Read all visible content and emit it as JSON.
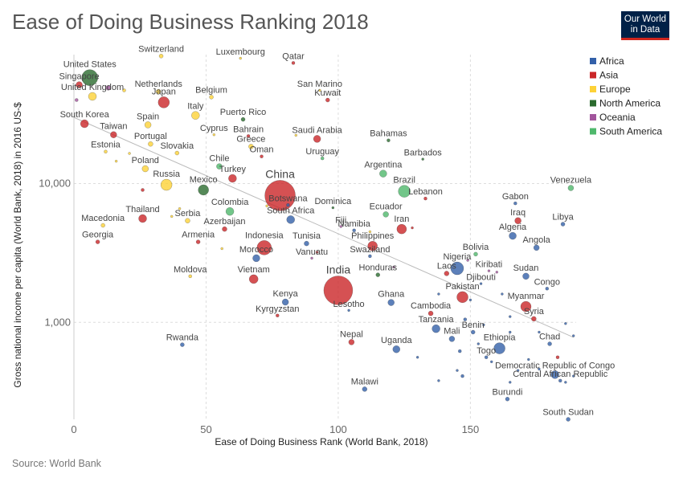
{
  "title": "Ease of Doing Business Ranking 2018",
  "logo": {
    "line1": "Our World",
    "line2": "in Data"
  },
  "source": "Source: World Bank",
  "chart_data": {
    "type": "scatter",
    "xlabel": "Ease of Doing Business Rank (World Bank, 2018)",
    "ylabel": "Gross national income per capita (World Bank, 2018) in 2016 US-$",
    "xlim": [
      0,
      190
    ],
    "ylim": [
      200,
      85000
    ],
    "yscale": "log",
    "x_ticks": [
      0,
      50,
      100,
      150
    ],
    "y_ticks": [
      {
        "value": 1000,
        "label": "1,000"
      },
      {
        "value": 10000,
        "label": "10,000"
      }
    ],
    "grid": true,
    "legend_position": "top-right",
    "trendline": {
      "x": [
        0,
        189
      ],
      "y": [
        30000,
        780
      ]
    },
    "regions": [
      {
        "name": "Africa",
        "color": "#3360a9"
      },
      {
        "name": "Asia",
        "color": "#ca2628"
      },
      {
        "name": "Europe",
        "color": "#fdd237"
      },
      {
        "name": "North America",
        "color": "#2b6b2e"
      },
      {
        "name": "Oceania",
        "color": "#a2559c"
      },
      {
        "name": "South America",
        "color": "#4fb86c"
      }
    ],
    "points": [
      {
        "label": "United States",
        "x": 6,
        "y": 58000,
        "r": 10,
        "region": "North America"
      },
      {
        "label": "Singapore",
        "x": 2,
        "y": 51500,
        "r": 4,
        "region": "Asia"
      },
      {
        "label": "United Kingdom",
        "x": 7,
        "y": 42500,
        "r": 5,
        "region": "Europe"
      },
      {
        "label": "Switzerland",
        "x": 33,
        "y": 83000,
        "r": 2.5,
        "region": "Europe"
      },
      {
        "label": "Luxembourg",
        "x": 63,
        "y": 80000,
        "r": 1.5,
        "region": "Europe"
      },
      {
        "label": "Qatar",
        "x": 83,
        "y": 74000,
        "r": 2,
        "region": "Asia"
      },
      {
        "label": "Netherlands",
        "x": 32,
        "y": 46000,
        "r": 3,
        "region": "Europe"
      },
      {
        "label": "Japan",
        "x": 34,
        "y": 38500,
        "r": 7,
        "region": "Asia"
      },
      {
        "label": "Belgium",
        "x": 52,
        "y": 42000,
        "r": 2.5,
        "region": "Europe"
      },
      {
        "label": "San Marino",
        "x": 93,
        "y": 47000,
        "r": 1.5,
        "region": "Europe"
      },
      {
        "label": "Kuwait",
        "x": 96,
        "y": 40000,
        "r": 2.5,
        "region": "Asia"
      },
      {
        "label": "Italy",
        "x": 46,
        "y": 31000,
        "r": 5,
        "region": "Europe"
      },
      {
        "label": "Puerto Rico",
        "x": 64,
        "y": 29000,
        "r": 2.5,
        "region": "North America"
      },
      {
        "label": "South Korea",
        "x": 4,
        "y": 27000,
        "r": 5,
        "region": "Asia"
      },
      {
        "label": "Spain",
        "x": 28,
        "y": 26500,
        "r": 4,
        "region": "Europe"
      },
      {
        "label": "Taiwan",
        "x": 15,
        "y": 22500,
        "r": 4,
        "region": "Asia"
      },
      {
        "label": "Cyprus",
        "x": 53,
        "y": 22500,
        "r": 1.5,
        "region": "Europe"
      },
      {
        "label": "Bahrain",
        "x": 66,
        "y": 22000,
        "r": 2,
        "region": "Asia"
      },
      {
        "label": "Saudi Arabia",
        "x": 92,
        "y": 21000,
        "r": 4.5,
        "region": "Asia"
      },
      {
        "label": "Bahamas",
        "x": 119,
        "y": 20500,
        "r": 2,
        "region": "North America"
      },
      {
        "label": "Portugal",
        "x": 29,
        "y": 19300,
        "r": 3,
        "region": "Europe"
      },
      {
        "label": "Greece",
        "x": 67,
        "y": 18500,
        "r": 3,
        "region": "Europe"
      },
      {
        "label": "Estonia",
        "x": 12,
        "y": 17000,
        "r": 2,
        "region": "Europe"
      },
      {
        "label": "Slovakia",
        "x": 39,
        "y": 16600,
        "r": 2.5,
        "region": "Europe"
      },
      {
        "label": "Oman",
        "x": 71,
        "y": 15700,
        "r": 2,
        "region": "Asia"
      },
      {
        "label": "Uruguay",
        "x": 94,
        "y": 15200,
        "r": 2,
        "region": "South America"
      },
      {
        "label": "Barbados",
        "x": 132,
        "y": 15000,
        "r": 1.5,
        "region": "North America"
      },
      {
        "label": "Chile",
        "x": 55,
        "y": 13300,
        "r": 3.5,
        "region": "South America"
      },
      {
        "label": "Poland",
        "x": 27,
        "y": 12800,
        "r": 4,
        "region": "Europe"
      },
      {
        "label": "Argentina",
        "x": 117,
        "y": 11800,
        "r": 4.5,
        "region": "South America"
      },
      {
        "label": "Turkey",
        "x": 60,
        "y": 10900,
        "r": 5,
        "region": "Asia"
      },
      {
        "label": "Russia",
        "x": 35,
        "y": 9800,
        "r": 7,
        "region": "Europe"
      },
      {
        "label": "Mexico",
        "x": 49,
        "y": 9000,
        "r": 6.5,
        "region": "North America"
      },
      {
        "label": "Brazil",
        "x": 125,
        "y": 8800,
        "r": 7.5,
        "region": "South America"
      },
      {
        "label": "Venezuela",
        "x": 188,
        "y": 9300,
        "r": 3.5,
        "region": "South America"
      },
      {
        "label": "China",
        "x": 78,
        "y": 8200,
        "r": 19,
        "region": "Asia"
      },
      {
        "label": "Lebanon",
        "x": 133,
        "y": 7800,
        "r": 2,
        "region": "Asia"
      },
      {
        "label": "Gabon",
        "x": 167,
        "y": 7200,
        "r": 2,
        "region": "Africa"
      },
      {
        "label": "Botswana",
        "x": 81,
        "y": 7000,
        "r": 2,
        "region": "Africa"
      },
      {
        "label": "Dominica",
        "x": 98,
        "y": 6700,
        "r": 1.5,
        "region": "North America"
      },
      {
        "label": "Colombia",
        "x": 59,
        "y": 6300,
        "r": 5,
        "region": "South America"
      },
      {
        "label": "Ecuador",
        "x": 118,
        "y": 6000,
        "r": 3.5,
        "region": "South America"
      },
      {
        "label": "South Africa",
        "x": 82,
        "y": 5500,
        "r": 5,
        "region": "Africa"
      },
      {
        "label": "Thailand",
        "x": 26,
        "y": 5600,
        "r": 5,
        "region": "Asia"
      },
      {
        "label": "Serbia",
        "x": 43,
        "y": 5400,
        "r": 3,
        "region": "Europe"
      },
      {
        "label": "Iraq",
        "x": 168,
        "y": 5400,
        "r": 4,
        "region": "Asia"
      },
      {
        "label": "Libya",
        "x": 185,
        "y": 5100,
        "r": 2.5,
        "region": "Africa"
      },
      {
        "label": "Macedonia",
        "x": 11,
        "y": 5000,
        "r": 2.5,
        "region": "Europe"
      },
      {
        "label": "Azerbaijan",
        "x": 57,
        "y": 4700,
        "r": 3,
        "region": "Asia"
      },
      {
        "label": "Fiji",
        "x": 101,
        "y": 4900,
        "r": 1.5,
        "region": "Oceania"
      },
      {
        "label": "Namibia",
        "x": 106,
        "y": 4600,
        "r": 2,
        "region": "Africa"
      },
      {
        "label": "Iran",
        "x": 124,
        "y": 4700,
        "r": 6,
        "region": "Asia"
      },
      {
        "label": "Algeria",
        "x": 166,
        "y": 4200,
        "r": 4.5,
        "region": "Africa"
      },
      {
        "label": "Georgia",
        "x": 9,
        "y": 3800,
        "r": 2.5,
        "region": "Asia"
      },
      {
        "label": "Armenia",
        "x": 47,
        "y": 3800,
        "r": 2.5,
        "region": "Asia"
      },
      {
        "label": "Indonesia",
        "x": 72,
        "y": 3450,
        "r": 9,
        "region": "Asia"
      },
      {
        "label": "Tunisia",
        "x": 88,
        "y": 3700,
        "r": 3,
        "region": "Africa"
      },
      {
        "label": "Philippines",
        "x": 113,
        "y": 3550,
        "r": 6,
        "region": "Asia"
      },
      {
        "label": "Angola",
        "x": 175,
        "y": 3450,
        "r": 3.5,
        "region": "Africa"
      },
      {
        "label": "Bolivia",
        "x": 152,
        "y": 3100,
        "r": 2.5,
        "region": "South America"
      },
      {
        "label": "Morocco",
        "x": 69,
        "y": 2900,
        "r": 4.5,
        "region": "Africa"
      },
      {
        "label": "Vanuatu",
        "x": 90,
        "y": 2900,
        "r": 1.5,
        "region": "Oceania"
      },
      {
        "label": "Swaziland",
        "x": 112,
        "y": 3000,
        "r": 2,
        "region": "Africa"
      },
      {
        "label": "Nigeria",
        "x": 145,
        "y": 2450,
        "r": 8,
        "region": "Africa"
      },
      {
        "label": "Kiribati",
        "x": 157,
        "y": 2350,
        "r": 1.5,
        "region": "Oceania"
      },
      {
        "label": "Moldova",
        "x": 44,
        "y": 2150,
        "r": 2,
        "region": "Europe"
      },
      {
        "label": "Vietnam",
        "x": 68,
        "y": 2050,
        "r": 5.5,
        "region": "Asia"
      },
      {
        "label": "Honduras",
        "x": 115,
        "y": 2200,
        "r": 2.5,
        "region": "North America"
      },
      {
        "label": "Laos",
        "x": 141,
        "y": 2250,
        "r": 3,
        "region": "Asia"
      },
      {
        "label": "Sudan",
        "x": 171,
        "y": 2150,
        "r": 4,
        "region": "Africa"
      },
      {
        "label": "Djibouti",
        "x": 154,
        "y": 1900,
        "r": 1.5,
        "region": "Africa"
      },
      {
        "label": "Congo",
        "x": 179,
        "y": 1750,
        "r": 2,
        "region": "Africa"
      },
      {
        "label": "India",
        "x": 100,
        "y": 1700,
        "r": 18,
        "region": "Asia"
      },
      {
        "label": "Pakistan",
        "x": 147,
        "y": 1520,
        "r": 7,
        "region": "Asia"
      },
      {
        "label": "Myanmar",
        "x": 171,
        "y": 1300,
        "r": 6.5,
        "region": "Asia"
      },
      {
        "label": "Kenya",
        "x": 80,
        "y": 1400,
        "r": 4,
        "region": "Africa"
      },
      {
        "label": "Ghana",
        "x": 120,
        "y": 1390,
        "r": 4,
        "region": "Africa"
      },
      {
        "label": "Lesotho",
        "x": 104,
        "y": 1220,
        "r": 1.5,
        "region": "Africa"
      },
      {
        "label": "Kyrgyzstan",
        "x": 77,
        "y": 1120,
        "r": 2,
        "region": "Asia"
      },
      {
        "label": "Cambodia",
        "x": 135,
        "y": 1160,
        "r": 3,
        "region": "Asia"
      },
      {
        "label": "Syria",
        "x": 174,
        "y": 1060,
        "r": 3,
        "region": "Asia"
      },
      {
        "label": "Tanzania",
        "x": 137,
        "y": 900,
        "r": 5,
        "region": "Africa"
      },
      {
        "label": "Benin",
        "x": 151,
        "y": 850,
        "r": 2.5,
        "region": "Africa"
      },
      {
        "label": "Chad",
        "x": 180,
        "y": 700,
        "r": 2.5,
        "region": "Africa"
      },
      {
        "label": "Mali",
        "x": 143,
        "y": 760,
        "r": 3.5,
        "region": "Africa"
      },
      {
        "label": "Ethiopia",
        "x": 161,
        "y": 650,
        "r": 7,
        "region": "Africa"
      },
      {
        "label": "Nepal",
        "x": 105,
        "y": 720,
        "r": 3.5,
        "region": "Asia"
      },
      {
        "label": "Uganda",
        "x": 122,
        "y": 640,
        "r": 4.5,
        "region": "Africa"
      },
      {
        "label": "Rwanda",
        "x": 41,
        "y": 690,
        "r": 2.5,
        "region": "Africa"
      },
      {
        "label": "Togo",
        "x": 156,
        "y": 560,
        "r": 2,
        "region": "Africa"
      },
      {
        "label": "Democratic Republic of Congo",
        "x": 182,
        "y": 420,
        "r": 5,
        "region": "Africa"
      },
      {
        "label": "Central African Republic",
        "x": 184,
        "y": 380,
        "r": 2,
        "region": "Africa"
      },
      {
        "label": "Malawi",
        "x": 110,
        "y": 330,
        "r": 3,
        "region": "Africa"
      },
      {
        "label": "Burundi",
        "x": 164,
        "y": 280,
        "r": 2.5,
        "region": "Africa"
      },
      {
        "label": "South Sudan",
        "x": 187,
        "y": 200,
        "r": 2.5,
        "region": "Africa"
      },
      {
        "label": "",
        "x": 1,
        "y": 40000,
        "r": 2,
        "region": "Oceania"
      },
      {
        "label": "",
        "x": 19,
        "y": 47000,
        "r": 2,
        "region": "Europe"
      },
      {
        "label": "",
        "x": 13,
        "y": 49000,
        "r": 3,
        "region": "Oceania"
      },
      {
        "label": "",
        "x": 21,
        "y": 16500,
        "r": 1.5,
        "region": "Europe"
      },
      {
        "label": "",
        "x": 16,
        "y": 14500,
        "r": 1.5,
        "region": "Europe"
      },
      {
        "label": "",
        "x": 26,
        "y": 9000,
        "r": 2,
        "region": "Asia"
      },
      {
        "label": "",
        "x": 84,
        "y": 22300,
        "r": 1.5,
        "region": "Europe"
      },
      {
        "label": "",
        "x": 37,
        "y": 5800,
        "r": 1.5,
        "region": "Europe"
      },
      {
        "label": "",
        "x": 40,
        "y": 6600,
        "r": 1.5,
        "region": "Europe"
      },
      {
        "label": "",
        "x": 73,
        "y": 6900,
        "r": 1.5,
        "region": "Europe"
      },
      {
        "label": "",
        "x": 56,
        "y": 3400,
        "r": 1.5,
        "region": "Europe"
      },
      {
        "label": "",
        "x": 112,
        "y": 4500,
        "r": 1.5,
        "region": "Europe"
      },
      {
        "label": "",
        "x": 128,
        "y": 4800,
        "r": 1.5,
        "region": "Asia"
      },
      {
        "label": "",
        "x": 92,
        "y": 3200,
        "r": 1.5,
        "region": "Asia"
      },
      {
        "label": "",
        "x": 121,
        "y": 2500,
        "r": 1.5,
        "region": "Oceania"
      },
      {
        "label": "",
        "x": 149,
        "y": 2800,
        "r": 1.5,
        "region": "Oceania"
      },
      {
        "label": "",
        "x": 160,
        "y": 2300,
        "r": 1.5,
        "region": "Oceania"
      },
      {
        "label": "",
        "x": 138,
        "y": 1600,
        "r": 1.5,
        "region": "Africa"
      },
      {
        "label": "",
        "x": 150,
        "y": 1450,
        "r": 1.5,
        "region": "Africa"
      },
      {
        "label": "",
        "x": 162,
        "y": 1600,
        "r": 1.5,
        "region": "Africa"
      },
      {
        "label": "",
        "x": 165,
        "y": 1100,
        "r": 1.5,
        "region": "Africa"
      },
      {
        "label": "",
        "x": 148,
        "y": 1050,
        "r": 2,
        "region": "Africa"
      },
      {
        "label": "",
        "x": 155,
        "y": 960,
        "r": 1.5,
        "region": "Africa"
      },
      {
        "label": "",
        "x": 165,
        "y": 850,
        "r": 1.5,
        "region": "Africa"
      },
      {
        "label": "",
        "x": 176,
        "y": 850,
        "r": 1.5,
        "region": "Africa"
      },
      {
        "label": "",
        "x": 186,
        "y": 980,
        "r": 1.5,
        "region": "Africa"
      },
      {
        "label": "",
        "x": 189,
        "y": 800,
        "r": 1.5,
        "region": "Africa"
      },
      {
        "label": "",
        "x": 146,
        "y": 620,
        "r": 2,
        "region": "Africa"
      },
      {
        "label": "",
        "x": 158,
        "y": 520,
        "r": 1.5,
        "region": "Africa"
      },
      {
        "label": "",
        "x": 172,
        "y": 540,
        "r": 1.5,
        "region": "Africa"
      },
      {
        "label": "",
        "x": 183,
        "y": 560,
        "r": 2,
        "region": "Asia"
      },
      {
        "label": "",
        "x": 145,
        "y": 450,
        "r": 1.5,
        "region": "Africa"
      },
      {
        "label": "",
        "x": 147,
        "y": 410,
        "r": 2,
        "region": "Africa"
      },
      {
        "label": "",
        "x": 165,
        "y": 370,
        "r": 1.5,
        "region": "Africa"
      },
      {
        "label": "",
        "x": 168,
        "y": 450,
        "r": 1.5,
        "region": "Africa"
      },
      {
        "label": "",
        "x": 176,
        "y": 460,
        "r": 1.5,
        "region": "Africa"
      },
      {
        "label": "",
        "x": 189,
        "y": 410,
        "r": 1.5,
        "region": "Africa"
      },
      {
        "label": "",
        "x": 186,
        "y": 370,
        "r": 1.5,
        "region": "Africa"
      },
      {
        "label": "",
        "x": 138,
        "y": 380,
        "r": 1.5,
        "region": "Africa"
      },
      {
        "label": "",
        "x": 130,
        "y": 560,
        "r": 1.5,
        "region": "Africa"
      },
      {
        "label": "",
        "x": 153,
        "y": 700,
        "r": 1.5,
        "region": "Africa"
      }
    ]
  }
}
